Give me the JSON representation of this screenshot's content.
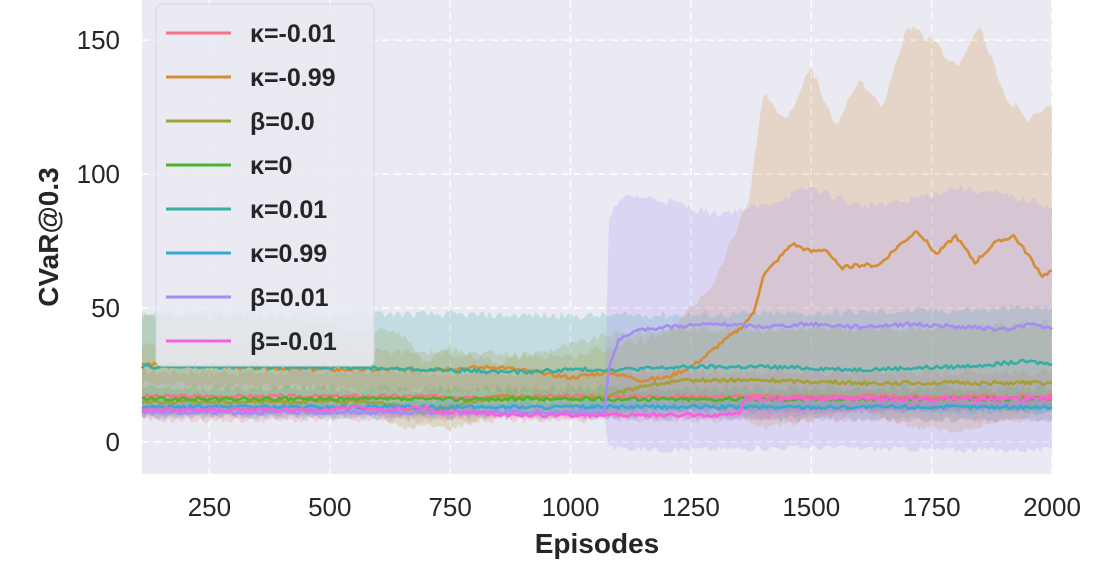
{
  "chart_data": {
    "type": "line",
    "title": "",
    "xlabel": "Episodes",
    "ylabel": "CVaR@0.3",
    "xlim": [
      110,
      2000
    ],
    "ylim": [
      -12,
      165
    ],
    "xticks": [
      250,
      500,
      750,
      1000,
      1250,
      1500,
      1750,
      2000
    ],
    "yticks": [
      0,
      50,
      100,
      150
    ],
    "grid": true,
    "legend_position": "top-left",
    "style": {
      "background": "#eaeaf2",
      "grid_color": "#ffffff",
      "band_opacity": 0.22
    },
    "series": [
      {
        "name": "κ=-0.01",
        "color": "#f77189",
        "points": [
          [
            110,
            17
          ],
          [
            400,
            17
          ],
          [
            700,
            17
          ],
          [
            1000,
            17
          ],
          [
            1300,
            17
          ],
          [
            1600,
            17
          ],
          [
            2000,
            17
          ]
        ],
        "lower": [
          [
            110,
            8
          ],
          [
            1000,
            8
          ],
          [
            2000,
            8
          ]
        ],
        "upper": [
          [
            110,
            26
          ],
          [
            1000,
            26
          ],
          [
            2000,
            26
          ]
        ]
      },
      {
        "name": "κ=-0.99",
        "color": "#d58c32",
        "points": [
          [
            110,
            29
          ],
          [
            300,
            28
          ],
          [
            500,
            27
          ],
          [
            700,
            27
          ],
          [
            850,
            28
          ],
          [
            1000,
            24
          ],
          [
            1080,
            26
          ],
          [
            1150,
            23
          ],
          [
            1200,
            24
          ],
          [
            1250,
            28
          ],
          [
            1280,
            32
          ],
          [
            1320,
            38
          ],
          [
            1350,
            42
          ],
          [
            1380,
            48
          ],
          [
            1400,
            62
          ],
          [
            1430,
            68
          ],
          [
            1460,
            74
          ],
          [
            1500,
            71
          ],
          [
            1530,
            72
          ],
          [
            1560,
            65
          ],
          [
            1600,
            66
          ],
          [
            1640,
            66
          ],
          [
            1680,
            73
          ],
          [
            1720,
            79
          ],
          [
            1760,
            70
          ],
          [
            1800,
            77
          ],
          [
            1840,
            67
          ],
          [
            1880,
            74
          ],
          [
            1920,
            77
          ],
          [
            1950,
            70
          ],
          [
            1980,
            62
          ],
          [
            2000,
            64
          ]
        ],
        "lower": [
          [
            110,
            22
          ],
          [
            1000,
            18
          ],
          [
            1200,
            16
          ],
          [
            1350,
            10
          ],
          [
            1400,
            5
          ],
          [
            1500,
            8
          ],
          [
            1600,
            12
          ],
          [
            1700,
            6
          ],
          [
            1800,
            4
          ],
          [
            1900,
            8
          ],
          [
            2000,
            12
          ]
        ],
        "upper": [
          [
            110,
            36
          ],
          [
            1000,
            32
          ],
          [
            1200,
            40
          ],
          [
            1300,
            60
          ],
          [
            1370,
            90
          ],
          [
            1400,
            130
          ],
          [
            1450,
            120
          ],
          [
            1500,
            140
          ],
          [
            1550,
            118
          ],
          [
            1600,
            135
          ],
          [
            1650,
            125
          ],
          [
            1700,
            155
          ],
          [
            1750,
            150
          ],
          [
            1800,
            140
          ],
          [
            1850,
            155
          ],
          [
            1900,
            130
          ],
          [
            1950,
            120
          ],
          [
            2000,
            125
          ]
        ]
      },
      {
        "name": "β=0.0",
        "color": "#a4a031",
        "points": [
          [
            110,
            15
          ],
          [
            600,
            15
          ],
          [
            650,
            13
          ],
          [
            700,
            11
          ],
          [
            750,
            13
          ],
          [
            850,
            17
          ],
          [
            1000,
            16
          ],
          [
            1080,
            17
          ],
          [
            1150,
            21
          ],
          [
            1250,
            23
          ],
          [
            1400,
            23
          ],
          [
            1600,
            22
          ],
          [
            1800,
            22
          ],
          [
            2000,
            22
          ]
        ],
        "lower": [
          [
            110,
            10
          ],
          [
            600,
            10
          ],
          [
            650,
            5
          ],
          [
            700,
            6
          ],
          [
            750,
            5
          ],
          [
            850,
            10
          ],
          [
            1000,
            10
          ],
          [
            1080,
            10
          ],
          [
            1200,
            12
          ],
          [
            2000,
            12
          ]
        ],
        "upper": [
          [
            110,
            48
          ],
          [
            400,
            46
          ],
          [
            650,
            40
          ],
          [
            700,
            30
          ],
          [
            750,
            35
          ],
          [
            850,
            30
          ],
          [
            1000,
            36
          ],
          [
            1080,
            40
          ],
          [
            1200,
            42
          ],
          [
            1600,
            42
          ],
          [
            2000,
            44
          ]
        ]
      },
      {
        "name": "κ=0",
        "color": "#50b131",
        "points": [
          [
            110,
            16
          ],
          [
            1000,
            16
          ],
          [
            2000,
            16
          ]
        ],
        "lower": [
          [
            110,
            12
          ],
          [
            1000,
            12
          ],
          [
            2000,
            12
          ]
        ],
        "upper": [
          [
            110,
            20
          ],
          [
            1000,
            20
          ],
          [
            2000,
            20
          ]
        ]
      },
      {
        "name": "κ=0.01",
        "color": "#36ada4",
        "points": [
          [
            110,
            28
          ],
          [
            300,
            28
          ],
          [
            500,
            28
          ],
          [
            700,
            27
          ],
          [
            900,
            26
          ],
          [
            1000,
            27
          ],
          [
            1100,
            27
          ],
          [
            1250,
            28
          ],
          [
            1400,
            28
          ],
          [
            1600,
            27
          ],
          [
            1800,
            28
          ],
          [
            1950,
            30
          ],
          [
            2000,
            29
          ]
        ],
        "lower": [
          [
            110,
            9
          ],
          [
            1000,
            9
          ],
          [
            2000,
            8
          ]
        ],
        "upper": [
          [
            110,
            48
          ],
          [
            500,
            48
          ],
          [
            1000,
            47
          ],
          [
            1500,
            48
          ],
          [
            2000,
            50
          ]
        ]
      },
      {
        "name": "κ=0.99",
        "color": "#38a6d6",
        "points": [
          [
            110,
            13
          ],
          [
            1000,
            13
          ],
          [
            2000,
            13
          ]
        ],
        "lower": [
          [
            110,
            11
          ],
          [
            1000,
            11
          ],
          [
            2000,
            11
          ]
        ],
        "upper": [
          [
            110,
            15
          ],
          [
            1000,
            15
          ],
          [
            2000,
            15
          ]
        ]
      },
      {
        "name": "β=0.01",
        "color": "#a48cf4",
        "points": [
          [
            110,
            11
          ],
          [
            1070,
            11
          ],
          [
            1080,
            28
          ],
          [
            1100,
            38
          ],
          [
            1150,
            42
          ],
          [
            1200,
            43
          ],
          [
            1300,
            44
          ],
          [
            1400,
            43
          ],
          [
            1500,
            44
          ],
          [
            1600,
            43
          ],
          [
            1700,
            44
          ],
          [
            1800,
            43
          ],
          [
            1900,
            42
          ],
          [
            1960,
            44
          ],
          [
            2000,
            42
          ]
        ],
        "lower": [
          [
            110,
            10
          ],
          [
            1070,
            10
          ],
          [
            1080,
            -2
          ],
          [
            1200,
            -3
          ],
          [
            1500,
            -2
          ],
          [
            1800,
            -3
          ],
          [
            2000,
            -3
          ]
        ],
        "upper": [
          [
            110,
            12
          ],
          [
            1070,
            12
          ],
          [
            1080,
            85
          ],
          [
            1120,
            92
          ],
          [
            1200,
            90
          ],
          [
            1300,
            85
          ],
          [
            1400,
            88
          ],
          [
            1500,
            95
          ],
          [
            1600,
            88
          ],
          [
            1700,
            90
          ],
          [
            1800,
            95
          ],
          [
            1900,
            92
          ],
          [
            2000,
            88
          ]
        ]
      },
      {
        "name": "β=-0.01",
        "color": "#f561dd",
        "points": [
          [
            110,
            12
          ],
          [
            500,
            12
          ],
          [
            560,
            13
          ],
          [
            620,
            12
          ],
          [
            700,
            13
          ],
          [
            720,
            11
          ],
          [
            800,
            11
          ],
          [
            900,
            10
          ],
          [
            1000,
            10
          ],
          [
            1350,
            10
          ],
          [
            1360,
            16
          ],
          [
            1500,
            16
          ],
          [
            1700,
            16
          ],
          [
            2000,
            16
          ]
        ],
        "lower": [
          [
            110,
            10
          ],
          [
            1350,
            9
          ],
          [
            2000,
            14
          ]
        ],
        "upper": [
          [
            110,
            14
          ],
          [
            1350,
            12
          ],
          [
            2000,
            18
          ]
        ]
      }
    ]
  }
}
